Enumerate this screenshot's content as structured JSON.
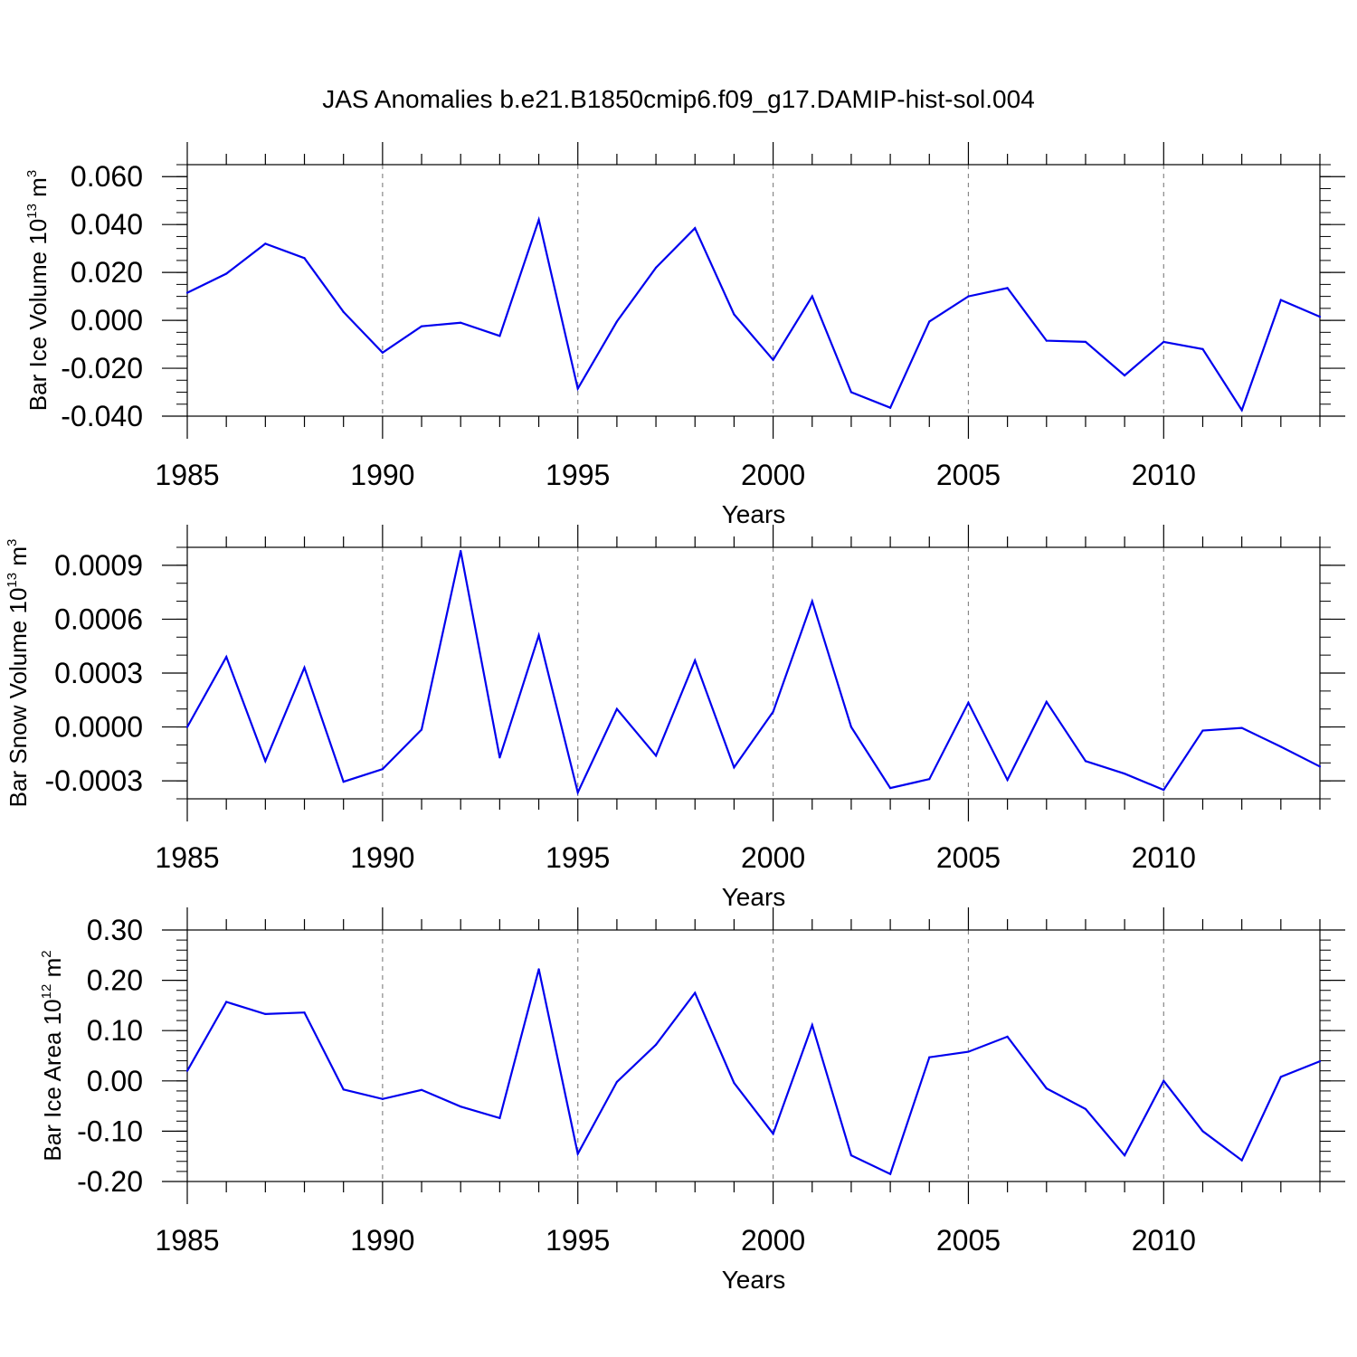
{
  "title": "JAS Anomalies b.e21.B1850cmip6.f09_g17.DAMIP-hist-sol.004",
  "colors": {
    "series": "#0000ee",
    "axes": "#000000",
    "grid": "#888888"
  },
  "chart_data": [
    {
      "type": "line",
      "ylabel": {
        "text": "Bar Ice Volume 10",
        "exp": "13",
        "unit": " m",
        "unit_exp": "3"
      },
      "xlabel": "Years",
      "xlim": [
        1985,
        2014
      ],
      "xticks": [
        1985,
        1990,
        1995,
        2000,
        2005,
        2010
      ],
      "ylim": [
        -0.04,
        0.065
      ],
      "yticks": [
        "-0.040",
        "-0.020",
        "0.000",
        "0.020",
        "0.040",
        "0.060"
      ],
      "ytick_values": [
        -0.04,
        -0.02,
        0.0,
        0.02,
        0.04,
        0.06
      ],
      "yminor_step": 0.005,
      "grid": "vertical dashed at major x ticks",
      "x": [
        1985,
        1986,
        1987,
        1988,
        1989,
        1990,
        1991,
        1992,
        1993,
        1994,
        1995,
        1996,
        1997,
        1998,
        1999,
        2000,
        2001,
        2002,
        2003,
        2004,
        2005,
        2006,
        2007,
        2008,
        2009,
        2010,
        2011,
        2012,
        2013,
        2014
      ],
      "values": [
        0.0115,
        0.0195,
        0.032,
        0.026,
        0.0035,
        -0.0135,
        -0.0025,
        -0.001,
        -0.0065,
        0.042,
        -0.0285,
        -0.0005,
        0.022,
        0.0385,
        0.0025,
        -0.0165,
        0.01,
        -0.03,
        -0.0365,
        -0.0005,
        0.01,
        0.0135,
        -0.0085,
        -0.009,
        -0.023,
        -0.009,
        -0.012,
        -0.0375,
        0.0085,
        0.0015
      ]
    },
    {
      "type": "line",
      "ylabel": {
        "text": "Bar Snow Volume 10",
        "exp": "13",
        "unit": " m",
        "unit_exp": "3"
      },
      "xlabel": "Years",
      "xlim": [
        1985,
        2014
      ],
      "xticks": [
        1985,
        1990,
        1995,
        2000,
        2005,
        2010
      ],
      "ylim": [
        -0.0004,
        0.001
      ],
      "yticks": [
        "-0.0003",
        "0.0000",
        "0.0003",
        "0.0006",
        "0.0009"
      ],
      "ytick_values": [
        -0.0003,
        0.0,
        0.0003,
        0.0006,
        0.0009
      ],
      "yminor_step": 0.0001,
      "grid": "vertical dashed at major x ticks",
      "x": [
        1985,
        1986,
        1987,
        1988,
        1989,
        1990,
        1991,
        1992,
        1993,
        1994,
        1995,
        1996,
        1997,
        1998,
        1999,
        2000,
        2001,
        2002,
        2003,
        2004,
        2005,
        2006,
        2007,
        2008,
        2009,
        2010,
        2011,
        2012,
        2013,
        2014
      ],
      "values": [
        0.0,
        0.00039,
        -0.00019,
        0.00033,
        -0.000305,
        -0.000235,
        -1.5e-05,
        0.00098,
        -0.00017,
        0.00051,
        -0.000365,
        0.0001,
        -0.00016,
        0.00037,
        -0.000225,
        8.5e-05,
        0.0007,
        0.0,
        -0.00034,
        -0.00029,
        0.000135,
        -0.000295,
        0.00014,
        -0.00019,
        -0.00026,
        -0.00035,
        -2e-05,
        -5e-06,
        -0.00011,
        -0.00022
      ]
    },
    {
      "type": "line",
      "ylabel": {
        "text": "Bar Ice Area 10",
        "exp": "12",
        "unit": " m",
        "unit_exp": "2"
      },
      "xlabel": "Years",
      "xlim": [
        1985,
        2014
      ],
      "xticks": [
        1985,
        1990,
        1995,
        2000,
        2005,
        2010
      ],
      "ylim": [
        -0.2,
        0.3
      ],
      "yticks": [
        "-0.20",
        "-0.10",
        "0.00",
        "0.10",
        "0.20",
        "0.30"
      ],
      "ytick_values": [
        -0.2,
        -0.1,
        0.0,
        0.1,
        0.2,
        0.3
      ],
      "yminor_step": 0.02,
      "grid": "vertical dashed at major x ticks",
      "x": [
        1985,
        1986,
        1987,
        1988,
        1989,
        1990,
        1991,
        1992,
        1993,
        1994,
        1995,
        1996,
        1997,
        1998,
        1999,
        2000,
        2001,
        2002,
        2003,
        2004,
        2005,
        2006,
        2007,
        2008,
        2009,
        2010,
        2011,
        2012,
        2013,
        2014
      ],
      "values": [
        0.02,
        0.157,
        0.133,
        0.136,
        -0.017,
        -0.036,
        -0.018,
        -0.051,
        -0.074,
        0.222,
        -0.145,
        -0.002,
        0.072,
        0.175,
        -0.004,
        -0.105,
        0.111,
        -0.148,
        -0.185,
        0.047,
        0.058,
        0.088,
        -0.015,
        -0.056,
        -0.148,
        0.0,
        -0.1,
        -0.158,
        0.008,
        0.039
      ]
    }
  ]
}
